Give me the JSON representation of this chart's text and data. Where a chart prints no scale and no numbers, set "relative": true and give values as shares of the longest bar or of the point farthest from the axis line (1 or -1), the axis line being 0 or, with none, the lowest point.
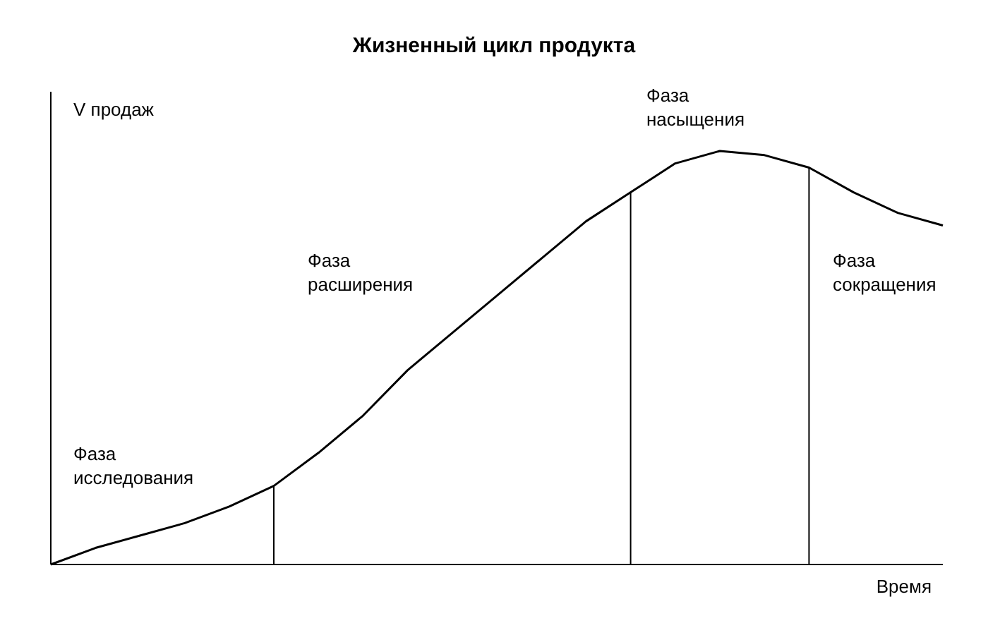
{
  "chart_data": {
    "type": "line",
    "title": "Жизненный цикл продукта",
    "xlabel": "Время",
    "ylabel": "V продаж",
    "relative": true,
    "tick_labels": false,
    "marker": "none",
    "line_style": "solid",
    "categories": [
      null,
      null,
      null,
      null,
      null,
      null,
      null,
      null,
      null,
      null,
      null,
      null,
      null,
      null,
      null,
      null,
      null,
      null,
      null,
      null,
      null
    ],
    "series": [
      {
        "color": "#000000",
        "values": [
          0,
          0.04,
          0.07,
          0.1,
          0.14,
          0.19,
          0.27,
          0.36,
          0.47,
          0.56,
          0.65,
          0.74,
          0.83,
          0.9,
          0.97,
          1,
          0.99,
          0.96,
          0.9,
          0.85,
          0.82
        ]
      }
    ],
    "annotations": [
      "Фаза\nисследования",
      "Фаза\nрасширения",
      "Фаза\nнасыщения",
      "Фаза\nсокращения"
    ]
  }
}
